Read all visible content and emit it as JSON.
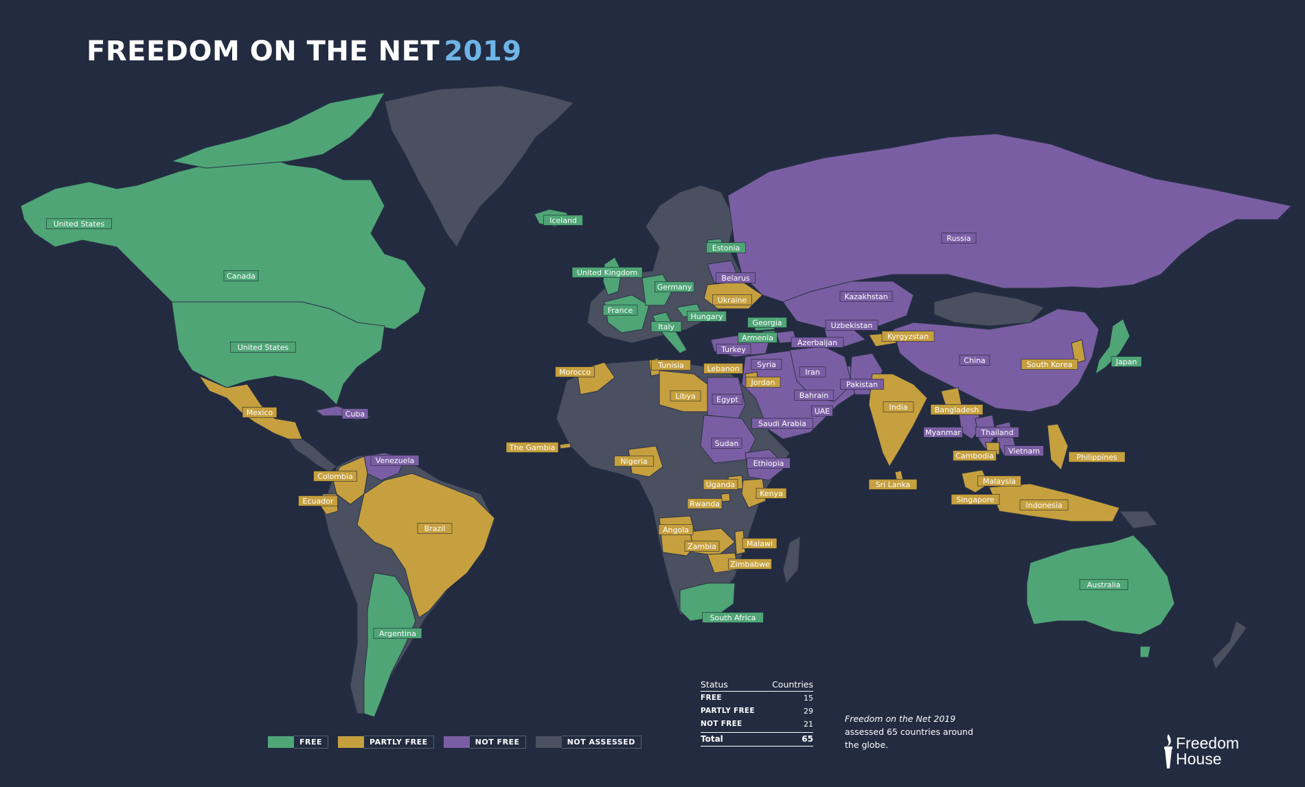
{
  "title": {
    "main": "FREEDOM ON THE NET",
    "year": "2019"
  },
  "colors": {
    "background": "#222b40",
    "free": "#4fa576",
    "partly_free": "#c6a03f",
    "not_free": "#7a5ea3",
    "not_assessed": "#4a5060"
  },
  "legend": [
    {
      "label": "FREE",
      "status": "free"
    },
    {
      "label": "PARTLY FREE",
      "status": "partly_free"
    },
    {
      "label": "NOT FREE",
      "status": "not_free"
    },
    {
      "label": "NOT ASSESSED",
      "status": "not_assessed"
    }
  ],
  "stats": {
    "header_status": "Status",
    "header_countries": "Countries",
    "rows": [
      {
        "label": "FREE",
        "value": "15"
      },
      {
        "label": "PARTLY FREE",
        "value": "29"
      },
      {
        "label": "NOT FREE",
        "value": "21"
      }
    ],
    "total_label": "Total",
    "total_value": "65"
  },
  "note": {
    "italic": "Freedom on the Net 2019",
    "rest": "assessed 65 countries around the globe."
  },
  "brand": {
    "line1": "Freedom",
    "line2": "House",
    "icon": "torch-icon"
  },
  "countries": [
    {
      "name": "United States",
      "status": "free"
    },
    {
      "name": "Canada",
      "status": "free"
    },
    {
      "name": "United States",
      "status": "free"
    },
    {
      "name": "Iceland",
      "status": "free"
    },
    {
      "name": "Estonia",
      "status": "free"
    },
    {
      "name": "United Kingdom",
      "status": "free"
    },
    {
      "name": "Germany",
      "status": "free"
    },
    {
      "name": "France",
      "status": "free"
    },
    {
      "name": "Italy",
      "status": "free"
    },
    {
      "name": "Hungary",
      "status": "free"
    },
    {
      "name": "Georgia",
      "status": "free"
    },
    {
      "name": "Armenia",
      "status": "free"
    },
    {
      "name": "Japan",
      "status": "free"
    },
    {
      "name": "Australia",
      "status": "free"
    },
    {
      "name": "South Africa",
      "status": "free"
    },
    {
      "name": "Argentina",
      "status": "free"
    },
    {
      "name": "Belarus",
      "status": "not_free"
    },
    {
      "name": "Russia",
      "status": "not_free"
    },
    {
      "name": "Kazakhstan",
      "status": "not_free"
    },
    {
      "name": "Uzbekistan",
      "status": "not_free"
    },
    {
      "name": "Azerbaijan",
      "status": "not_free"
    },
    {
      "name": "China",
      "status": "not_free"
    },
    {
      "name": "Turkey",
      "status": "not_free"
    },
    {
      "name": "Syria",
      "status": "not_free"
    },
    {
      "name": "Iran",
      "status": "not_free"
    },
    {
      "name": "Pakistan",
      "status": "not_free"
    },
    {
      "name": "Bahrain",
      "status": "not_free"
    },
    {
      "name": "UAE",
      "status": "not_free"
    },
    {
      "name": "Egypt",
      "status": "not_free"
    },
    {
      "name": "Saudi Arabia",
      "status": "not_free"
    },
    {
      "name": "Sudan",
      "status": "not_free"
    },
    {
      "name": "Ethiopia",
      "status": "not_free"
    },
    {
      "name": "Myanmar",
      "status": "not_free"
    },
    {
      "name": "Thailand",
      "status": "not_free"
    },
    {
      "name": "Vietnam",
      "status": "not_free"
    },
    {
      "name": "Cuba",
      "status": "not_free"
    },
    {
      "name": "Venezuela",
      "status": "not_free"
    },
    {
      "name": "Ukraine",
      "status": "partly_free"
    },
    {
      "name": "Kyrgyzstan",
      "status": "partly_free"
    },
    {
      "name": "South Korea",
      "status": "partly_free"
    },
    {
      "name": "Tunisia",
      "status": "partly_free"
    },
    {
      "name": "Lebanon",
      "status": "partly_free"
    },
    {
      "name": "Morocco",
      "status": "partly_free"
    },
    {
      "name": "Jordan",
      "status": "partly_free"
    },
    {
      "name": "Libya",
      "status": "partly_free"
    },
    {
      "name": "India",
      "status": "partly_free"
    },
    {
      "name": "Bangladesh",
      "status": "partly_free"
    },
    {
      "name": "Mexico",
      "status": "partly_free"
    },
    {
      "name": "The Gambia",
      "status": "partly_free"
    },
    {
      "name": "Nigeria",
      "status": "partly_free"
    },
    {
      "name": "Cambodia",
      "status": "partly_free"
    },
    {
      "name": "Philippines",
      "status": "partly_free"
    },
    {
      "name": "Colombia",
      "status": "partly_free"
    },
    {
      "name": "Ecuador",
      "status": "partly_free"
    },
    {
      "name": "Uganda",
      "status": "partly_free"
    },
    {
      "name": "Sri Lanka",
      "status": "partly_free"
    },
    {
      "name": "Malaysia",
      "status": "partly_free"
    },
    {
      "name": "Kenya",
      "status": "partly_free"
    },
    {
      "name": "Singapore",
      "status": "partly_free"
    },
    {
      "name": "Rwanda",
      "status": "partly_free"
    },
    {
      "name": "Indonesia",
      "status": "partly_free"
    },
    {
      "name": "Brazil",
      "status": "partly_free"
    },
    {
      "name": "Angola",
      "status": "partly_free"
    },
    {
      "name": "Zambia",
      "status": "partly_free"
    },
    {
      "name": "Malawi",
      "status": "partly_free"
    },
    {
      "name": "Zimbabwe",
      "status": "partly_free"
    }
  ]
}
